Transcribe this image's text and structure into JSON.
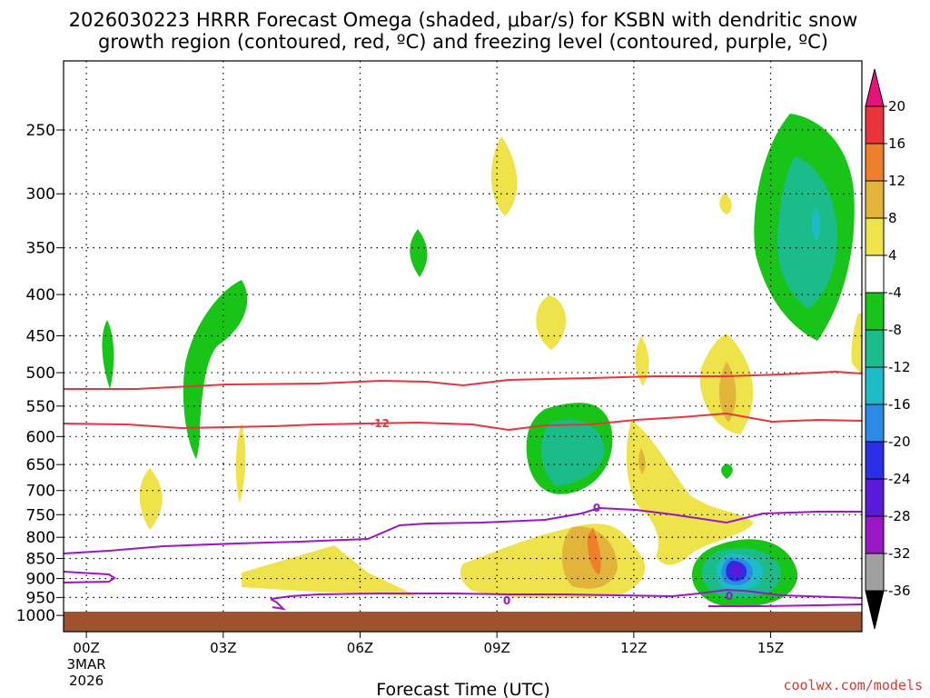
{
  "chart_data": {
    "type": "heatmap",
    "title_line1": "2026030223 HRRR Forecast Omega (shaded, μbar/s) for KSBN with dendritic snow",
    "title_line2": "growth region (contoured, red, ºC) and freezing level (contoured, purple, ºC)",
    "xlabel": "Forecast Time (UTC)",
    "credit": "coolwx.com/models",
    "x_range_hours": [
      -0.5,
      17
    ],
    "x_ticks": [
      {
        "hour": 0,
        "label": "00Z",
        "sub1": "3MAR",
        "sub2": "2026"
      },
      {
        "hour": 3,
        "label": "03Z"
      },
      {
        "hour": 6,
        "label": "06Z"
      },
      {
        "hour": 9,
        "label": "09Z"
      },
      {
        "hour": 12,
        "label": "12Z"
      },
      {
        "hour": 15,
        "label": "15Z"
      }
    ],
    "y_ticks": [
      "250",
      "300",
      "350",
      "400",
      "450",
      "500",
      "550",
      "600",
      "650",
      "700",
      "750",
      "800",
      "850",
      "900",
      "950",
      "1000"
    ],
    "y_range_hpa": [
      1000,
      200
    ],
    "colorbar": {
      "labels": [
        "20",
        "16",
        "12",
        "8",
        "4",
        "-4",
        "-8",
        "-12",
        "-16",
        "-20",
        "-24",
        "-28",
        "-32",
        "-36"
      ],
      "colors": [
        "#e8117b",
        "#e8343a",
        "#f07f2c",
        "#e3b43b",
        "#eee34b",
        "#ffffff",
        "#17c417",
        "#1bbc8a",
        "#1bbcc8",
        "#2b8ae8",
        "#2a2ee6",
        "#5a1ad6",
        "#9a16c6",
        "#a0a0a0",
        "#000000"
      ]
    },
    "dgz_contour_labels": [
      "-12"
    ],
    "freezing_contour_labels": [
      "0",
      "0",
      "0"
    ],
    "colors": {
      "dgz": "#e8343a",
      "freezing": "#9a16c6",
      "ground": "#a0522d",
      "gridline": "#000000"
    },
    "omega_features": [
      {
        "hour": 0.0,
        "hpa": 470,
        "value": -6
      },
      {
        "hour": 2.0,
        "hpa": 500,
        "value": -6
      },
      {
        "hour": 1.0,
        "hpa": 720,
        "value": 6
      },
      {
        "hour": 3.0,
        "hpa": 660,
        "value": 6
      },
      {
        "hour": 5.0,
        "hpa": 890,
        "value": 6
      },
      {
        "hour": 7.0,
        "hpa": 350,
        "value": -6
      },
      {
        "hour": 9.0,
        "hpa": 290,
        "value": 6
      },
      {
        "hour": 9.8,
        "hpa": 435,
        "value": 6
      },
      {
        "hour": 10.0,
        "hpa": 630,
        "value": -10
      },
      {
        "hour": 10.9,
        "hpa": 870,
        "value": 12
      },
      {
        "hour": 12.0,
        "hpa": 480,
        "value": 6
      },
      {
        "hour": 12.0,
        "hpa": 650,
        "value": 8
      },
      {
        "hour": 13.8,
        "hpa": 515,
        "value": 10
      },
      {
        "hour": 13.9,
        "hpa": 305,
        "value": 6
      },
      {
        "hour": 14.0,
        "hpa": 890,
        "value": -24
      },
      {
        "hour": 15.8,
        "hpa": 330,
        "value": -12
      },
      {
        "hour": 16.9,
        "hpa": 470,
        "value": 6
      }
    ]
  }
}
